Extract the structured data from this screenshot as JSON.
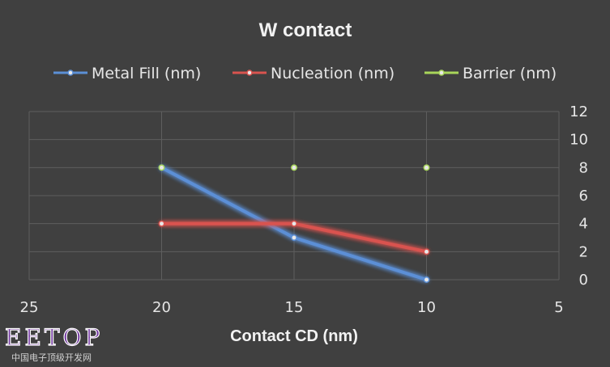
{
  "chart_data": {
    "type": "line",
    "title": "W contact",
    "xlabel": "Contact CD (nm)",
    "ylabel": "",
    "xlim": [
      25,
      5
    ],
    "x_reversed": true,
    "ylim": [
      0,
      12
    ],
    "x_ticks": [
      "25",
      "20",
      "15",
      "10",
      "5"
    ],
    "y_ticks": [
      "0",
      "2",
      "4",
      "6",
      "8",
      "10",
      "12"
    ],
    "y_axis_side": "right",
    "grid": true,
    "legend_position": "top",
    "x": [
      20,
      15,
      10
    ],
    "series": [
      {
        "name": "Metal Fill (nm)",
        "values": [
          8,
          3,
          0
        ],
        "color": "#5b8fd6"
      },
      {
        "name": "Nucleation (nm)",
        "values": [
          4,
          4,
          2
        ],
        "color": "#d9534f"
      },
      {
        "name": "Barrier (nm)",
        "values": [
          8,
          8,
          8
        ],
        "color": "#a8d65a"
      }
    ]
  },
  "watermark": {
    "logo_text": "EETOP",
    "caption": "中国电子顶级开发网"
  }
}
